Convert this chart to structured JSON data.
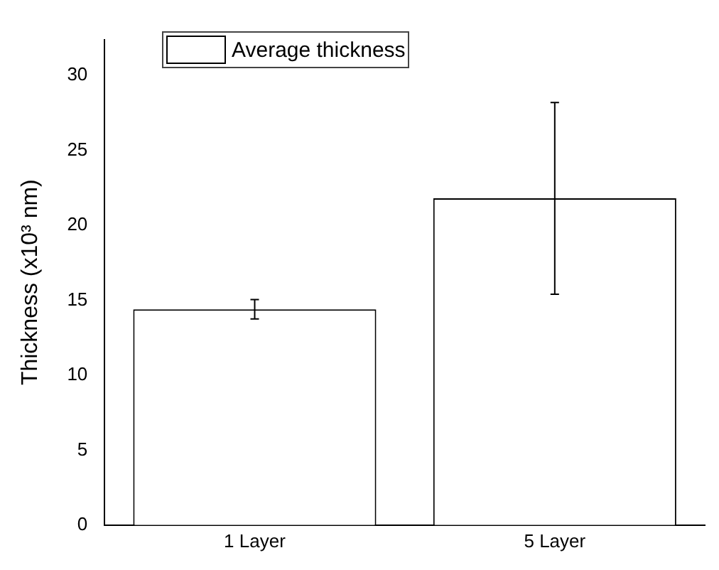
{
  "chart_data": {
    "type": "bar",
    "ylabel": "Thickness (x10³ nm)",
    "categories": [
      "1 Layer",
      "5 Layer"
    ],
    "series": [
      {
        "name": "Average thickness",
        "color": "#ffffff",
        "values": [
          14.4,
          21.8
        ],
        "errors": [
          0.65,
          6.4
        ]
      }
    ],
    "ylim": [
      0,
      32.4
    ],
    "yticks": [
      0,
      5,
      10,
      15,
      20,
      25,
      30
    ],
    "grid": false,
    "legend": "top left"
  }
}
